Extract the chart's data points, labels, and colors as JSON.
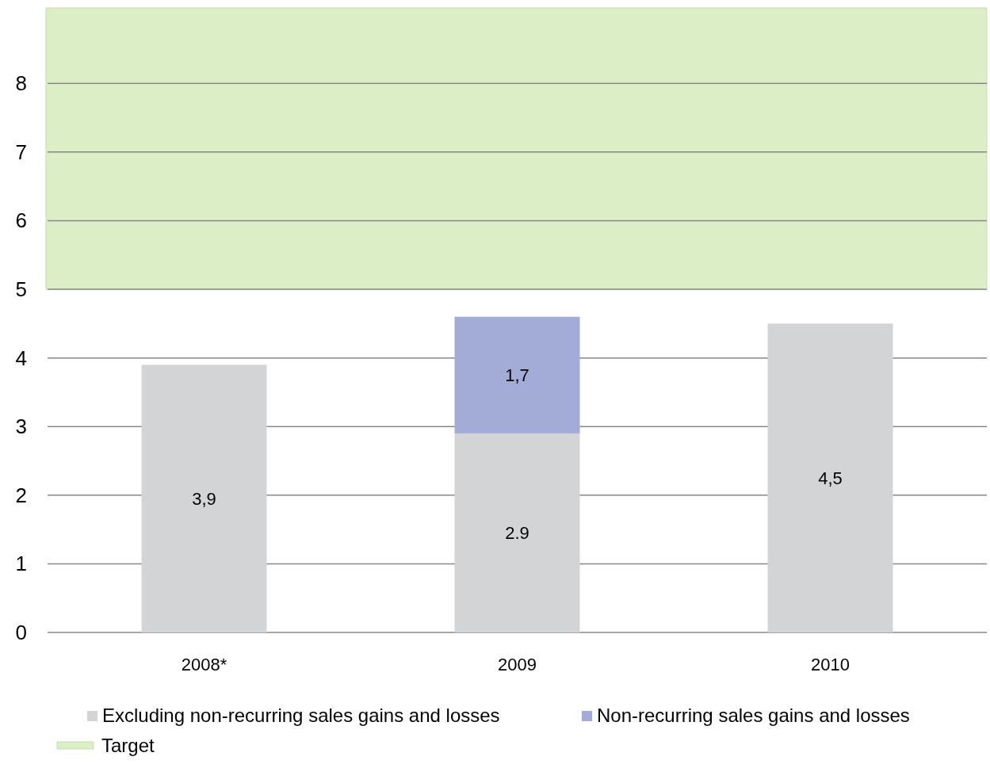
{
  "chart_data": {
    "type": "bar",
    "stacked": true,
    "categories": [
      "2008*",
      "2009",
      "2010"
    ],
    "series": [
      {
        "name": "Excluding non-recurring sales gains and losses",
        "color": "#d3d4d6",
        "values": [
          3.9,
          2.9,
          4.5
        ],
        "value_labels": [
          "3,9",
          "2.9",
          "4,5"
        ]
      },
      {
        "name": "Non-recurring sales gains and losses",
        "color": "#a3acd6",
        "values": [
          null,
          1.7,
          null
        ],
        "value_labels": [
          null,
          "1,7",
          null
        ]
      }
    ],
    "ylim": [
      0,
      9.1
    ],
    "yticks": [
      0,
      1,
      2,
      3,
      4,
      5,
      6,
      7,
      8
    ],
    "grid": "y",
    "legend": "bottom",
    "bands": [
      {
        "axis": "y",
        "from": 5,
        "to": 9.1,
        "label": "Target",
        "color": "#dbeec6"
      }
    ]
  }
}
